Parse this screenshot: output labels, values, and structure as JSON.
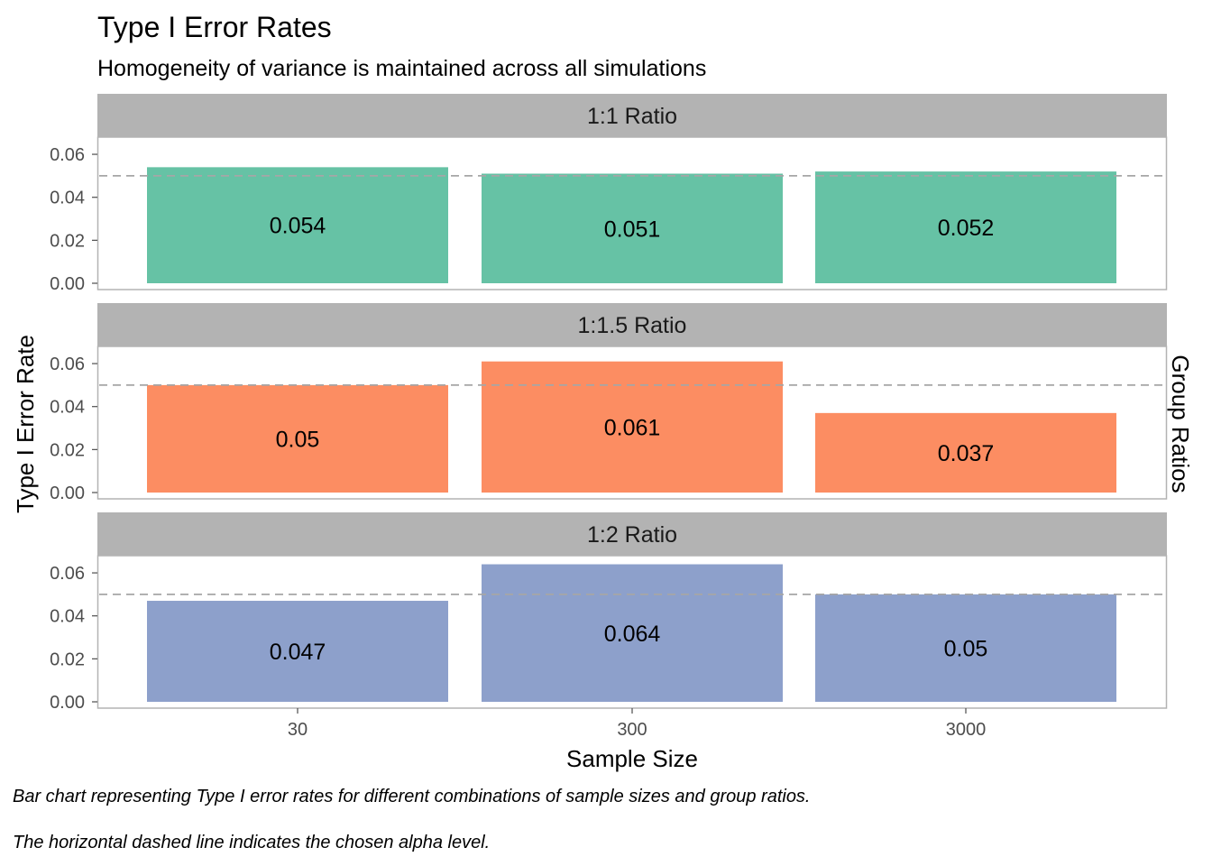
{
  "chart_data": {
    "type": "bar",
    "title": "Type I Error Rates",
    "subtitle": "Homogeneity of variance is maintained across all simulations",
    "xlabel": "Sample Size",
    "ylabel": "Type I Error Rate",
    "facet_label": "Group Ratios",
    "categories": [
      "30",
      "300",
      "3000"
    ],
    "ylim": [
      0,
      0.068
    ],
    "yticks": [
      "0.00",
      "0.02",
      "0.04",
      "0.06"
    ],
    "ytick_values": [
      0,
      0.02,
      0.04,
      0.06
    ],
    "alpha_line": 0.05,
    "grid": false,
    "series": [
      {
        "name": "1:1 Ratio",
        "values": [
          0.054,
          0.051,
          0.052
        ],
        "labels": [
          "0.054",
          "0.051",
          "0.052"
        ],
        "color": "#66c2a5"
      },
      {
        "name": "1:1.5 Ratio",
        "values": [
          0.05,
          0.061,
          0.037
        ],
        "labels": [
          "0.05",
          "0.061",
          "0.037"
        ],
        "color": "#fc8d62"
      },
      {
        "name": "1:2 Ratio",
        "values": [
          0.047,
          0.064,
          0.05
        ],
        "labels": [
          "0.047",
          "0.064",
          "0.05"
        ],
        "color": "#8da0cb"
      }
    ],
    "caption": [
      "Bar chart representing Type I error rates for different combinations of sample sizes and group ratios.",
      "The horizontal dashed line indicates the chosen alpha level."
    ]
  }
}
